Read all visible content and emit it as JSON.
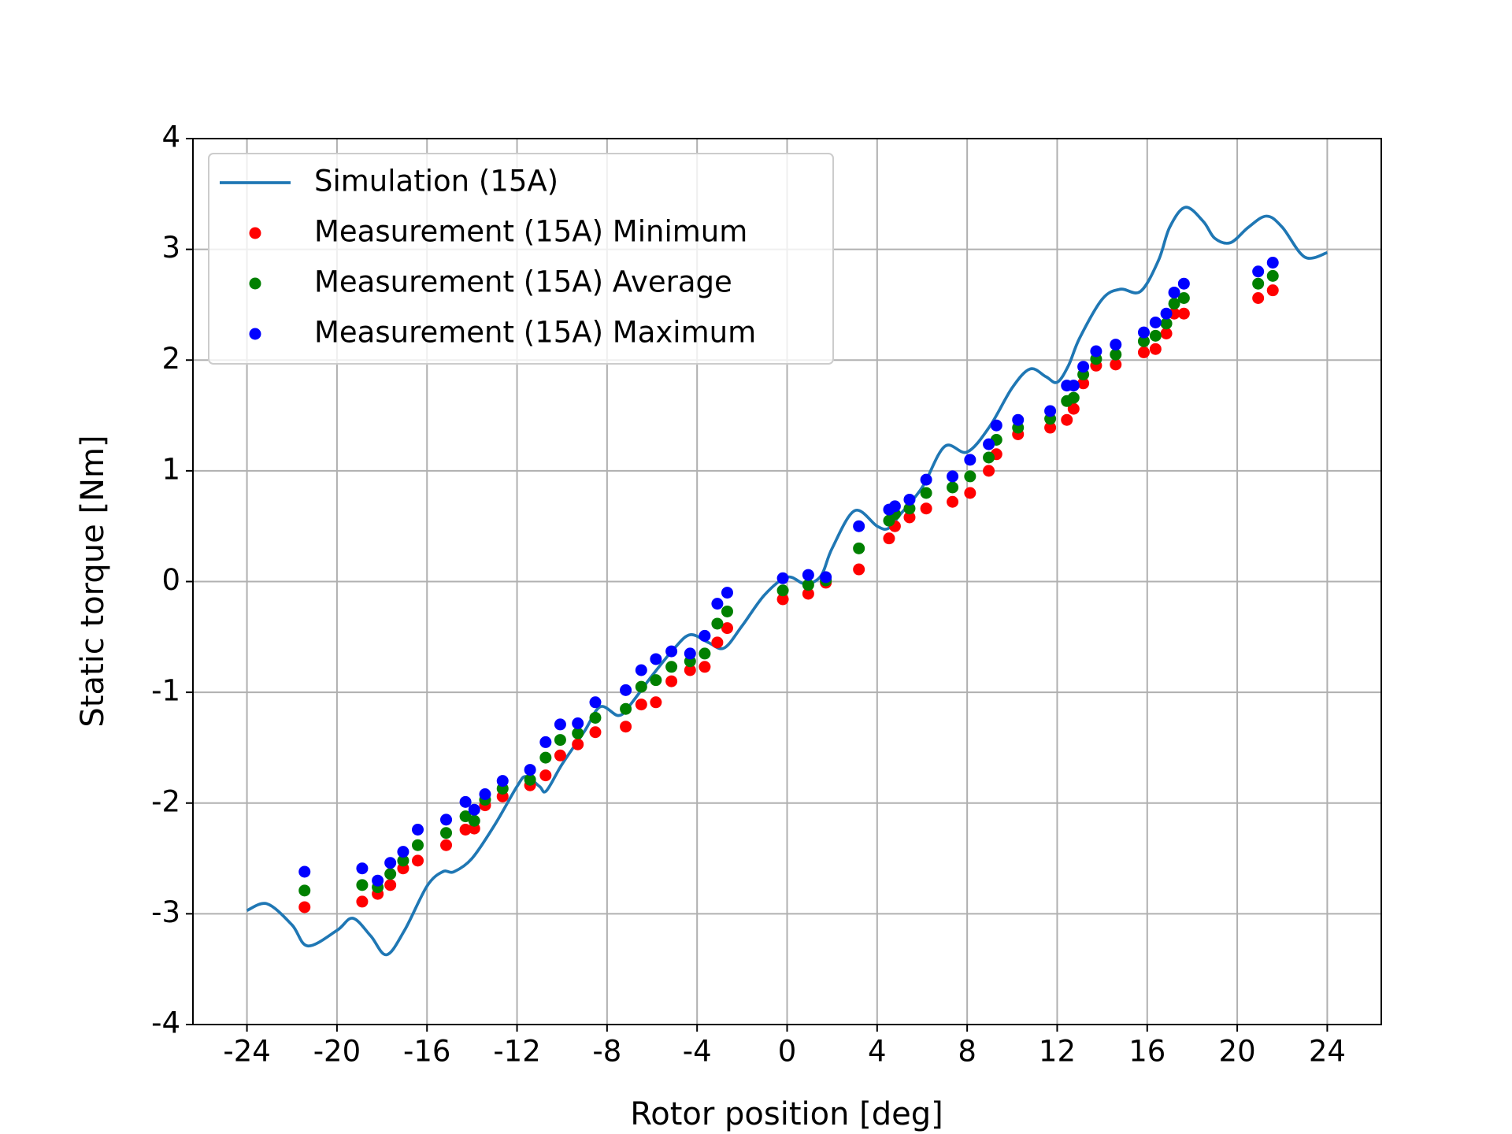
{
  "chart_data": {
    "type": "line",
    "xlabel": "Rotor position [deg]",
    "ylabel": "Static torque [Nm]",
    "xlim": [
      -26.4,
      26.4
    ],
    "ylim": [
      -4,
      4
    ],
    "xticks": [
      -24,
      -20,
      -16,
      -12,
      -8,
      -4,
      0,
      4,
      8,
      12,
      16,
      20,
      24
    ],
    "yticks": [
      -4,
      -3,
      -2,
      -1,
      0,
      1,
      2,
      3,
      4
    ],
    "grid": true,
    "legend": "upper left",
    "series": [
      {
        "name": "Simulation (15A)",
        "type": "line",
        "color": "#1f77b4",
        "x": [
          -24,
          -23.1,
          -22,
          -21.3,
          -20,
          -19.3,
          -18.5,
          -17.8,
          -17,
          -16,
          -15.3,
          -14.8,
          -14,
          -13,
          -12,
          -11.6,
          -11,
          -10.7,
          -10,
          -9,
          -8.3,
          -7.5,
          -7,
          -6,
          -5,
          -4.3,
          -3.5,
          -2.8,
          -2,
          -1,
          0,
          0.8,
          1.5,
          2,
          3,
          4,
          4.5,
          5,
          6,
          7,
          8,
          9,
          10,
          10.8,
          11.5,
          12,
          12.5,
          13,
          14,
          14.8,
          15.7,
          16.5,
          17,
          17.7,
          18.5,
          19,
          19.7,
          20.5,
          21.3,
          22,
          23,
          24
        ],
        "values": [
          -2.97,
          -2.91,
          -3.1,
          -3.29,
          -3.15,
          -3.04,
          -3.2,
          -3.37,
          -3.15,
          -2.75,
          -2.62,
          -2.62,
          -2.5,
          -2.2,
          -1.85,
          -1.76,
          -1.85,
          -1.89,
          -1.65,
          -1.35,
          -1.13,
          -1.21,
          -1.12,
          -0.85,
          -0.6,
          -0.48,
          -0.55,
          -0.6,
          -0.4,
          -0.12,
          0.04,
          -0.02,
          0.05,
          0.3,
          0.64,
          0.5,
          0.48,
          0.6,
          0.85,
          1.22,
          1.17,
          1.4,
          1.75,
          1.92,
          1.85,
          1.8,
          1.95,
          2.2,
          2.55,
          2.64,
          2.62,
          2.9,
          3.2,
          3.38,
          3.25,
          3.1,
          3.06,
          3.2,
          3.3,
          3.2,
          2.93,
          2.97
        ]
      },
      {
        "name": "Measurement (15A) Minimum",
        "type": "scatter",
        "color": "#ff0000",
        "x": [
          -21.44,
          -18.88,
          -18.19,
          -17.63,
          -17.06,
          -16.41,
          -15.15,
          -14.29,
          -13.9,
          -13.42,
          -12.64,
          -11.42,
          -10.73,
          -10.08,
          -9.3,
          -8.52,
          -7.17,
          -6.48,
          -5.83,
          -5.14,
          -4.31,
          -3.66,
          -3.1,
          -2.66,
          -0.19,
          0.94,
          1.72,
          3.19,
          4.53,
          4.79,
          5.44,
          6.18,
          7.35,
          8.13,
          8.96,
          9.3,
          10.26,
          11.69,
          12.43,
          12.73,
          13.16,
          13.73,
          14.6,
          15.85,
          16.37,
          16.85,
          17.2,
          17.63,
          20.93,
          21.58
        ],
        "values": [
          -2.94,
          -2.89,
          -2.82,
          -2.74,
          -2.59,
          -2.52,
          -2.38,
          -2.24,
          -2.23,
          -2.02,
          -1.94,
          -1.84,
          -1.75,
          -1.57,
          -1.47,
          -1.36,
          -1.31,
          -1.11,
          -1.09,
          -0.9,
          -0.8,
          -0.77,
          -0.55,
          -0.42,
          -0.16,
          -0.11,
          -0.01,
          0.11,
          0.39,
          0.5,
          0.58,
          0.66,
          0.72,
          0.8,
          1.0,
          1.15,
          1.33,
          1.39,
          1.46,
          1.56,
          1.79,
          1.95,
          1.96,
          2.07,
          2.1,
          2.24,
          2.42,
          2.42,
          2.56,
          2.63
        ]
      },
      {
        "name": "Measurement (15A) Average",
        "type": "scatter",
        "color": "#008000",
        "x": [
          -21.44,
          -18.88,
          -18.19,
          -17.63,
          -17.06,
          -16.41,
          -15.15,
          -14.29,
          -13.9,
          -13.42,
          -12.64,
          -11.42,
          -10.73,
          -10.08,
          -9.3,
          -8.52,
          -7.17,
          -6.48,
          -5.83,
          -5.14,
          -4.31,
          -3.66,
          -3.1,
          -2.66,
          -0.19,
          0.94,
          1.72,
          3.19,
          4.53,
          4.79,
          5.44,
          6.18,
          7.35,
          8.13,
          8.96,
          9.3,
          10.26,
          11.69,
          12.43,
          12.73,
          13.16,
          13.73,
          14.6,
          15.85,
          16.37,
          16.85,
          17.2,
          17.63,
          20.93,
          21.58
        ],
        "values": [
          -2.79,
          -2.74,
          -2.76,
          -2.64,
          -2.52,
          -2.38,
          -2.27,
          -2.12,
          -2.16,
          -1.97,
          -1.87,
          -1.79,
          -1.59,
          -1.43,
          -1.37,
          -1.23,
          -1.15,
          -0.95,
          -0.89,
          -0.77,
          -0.72,
          -0.65,
          -0.38,
          -0.27,
          -0.08,
          -0.03,
          0.01,
          0.3,
          0.55,
          0.61,
          0.66,
          0.8,
          0.85,
          0.95,
          1.12,
          1.28,
          1.39,
          1.47,
          1.63,
          1.66,
          1.87,
          2.01,
          2.05,
          2.17,
          2.22,
          2.33,
          2.51,
          2.56,
          2.69,
          2.76
        ]
      },
      {
        "name": "Measurement (15A) Maximum",
        "type": "scatter",
        "color": "#0000ff",
        "x": [
          -21.44,
          -18.88,
          -18.19,
          -17.63,
          -17.06,
          -16.41,
          -15.15,
          -14.29,
          -13.9,
          -13.42,
          -12.64,
          -11.42,
          -10.73,
          -10.08,
          -9.3,
          -8.52,
          -7.17,
          -6.48,
          -5.83,
          -5.14,
          -4.31,
          -3.66,
          -3.1,
          -2.66,
          -0.19,
          0.94,
          1.72,
          3.19,
          4.53,
          4.79,
          5.44,
          6.18,
          7.35,
          8.13,
          8.96,
          9.3,
          10.26,
          11.69,
          12.43,
          12.73,
          13.16,
          13.73,
          14.6,
          15.85,
          16.37,
          16.85,
          17.2,
          17.63,
          20.93,
          21.58
        ],
        "values": [
          -2.62,
          -2.59,
          -2.7,
          -2.54,
          -2.44,
          -2.24,
          -2.15,
          -1.99,
          -2.06,
          -1.92,
          -1.8,
          -1.7,
          -1.45,
          -1.29,
          -1.28,
          -1.09,
          -0.98,
          -0.8,
          -0.7,
          -0.63,
          -0.65,
          -0.49,
          -0.2,
          -0.1,
          0.03,
          0.06,
          0.04,
          0.5,
          0.65,
          0.68,
          0.74,
          0.92,
          0.95,
          1.1,
          1.24,
          1.41,
          1.46,
          1.54,
          1.77,
          1.77,
          1.94,
          2.08,
          2.14,
          2.25,
          2.34,
          2.42,
          2.61,
          2.69,
          2.8,
          2.88
        ]
      }
    ]
  }
}
